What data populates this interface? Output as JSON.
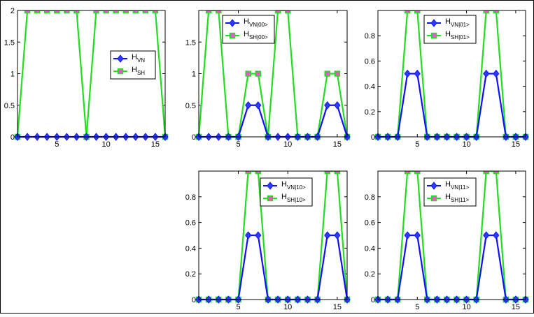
{
  "colors": {
    "vn": "#1010ff",
    "sh": "#22dd22",
    "sh_marker_fill": "#ee55cc",
    "vn_marker_fill": "#2b3cff"
  },
  "chart_data": [
    {
      "type": "line",
      "x": [
        1,
        2,
        3,
        4,
        5,
        6,
        7,
        8,
        9,
        10,
        11,
        12,
        13,
        14,
        15,
        16
      ],
      "xticks": [
        "5",
        "10",
        "15"
      ],
      "yticks": [
        "0",
        "0.5",
        "1",
        "1.5",
        "2"
      ],
      "ylim": [
        0,
        2
      ],
      "legend_placement": "center-right",
      "series": [
        {
          "name_main": "H",
          "name_sub": "VN",
          "values": [
            0,
            0,
            0,
            0,
            0,
            0,
            0,
            0,
            0,
            0,
            0,
            0,
            0,
            0,
            0,
            0
          ]
        },
        {
          "name_main": "H",
          "name_sub": "SH",
          "values": [
            0,
            2,
            2,
            2,
            2,
            2,
            2,
            0,
            2,
            2,
            2,
            2,
            2,
            2,
            2,
            0
          ]
        }
      ]
    },
    {
      "type": "line",
      "x": [
        1,
        2,
        3,
        4,
        5,
        6,
        7,
        8,
        9,
        10,
        11,
        12,
        13,
        14,
        15,
        16
      ],
      "xticks": [
        "5",
        "10",
        "15"
      ],
      "yticks": [
        "0",
        "0.5",
        "1",
        "1.5"
      ],
      "ylim": [
        0,
        2
      ],
      "legend_placement": "top-center",
      "series": [
        {
          "name_main": "H",
          "name_sub": "VN|00>",
          "values": [
            0,
            0,
            0,
            0,
            0,
            0.5,
            0.5,
            0,
            0,
            0,
            0,
            0,
            0,
            0.5,
            0.5,
            0
          ]
        },
        {
          "name_main": "H",
          "name_sub": "SH|00>",
          "values": [
            0,
            2,
            2,
            0,
            0,
            1,
            1,
            0,
            2,
            2,
            0,
            0,
            0,
            1,
            1,
            0
          ]
        }
      ]
    },
    {
      "type": "line",
      "x": [
        1,
        2,
        3,
        4,
        5,
        6,
        7,
        8,
        9,
        10,
        11,
        12,
        13,
        14,
        15,
        16
      ],
      "xticks": [
        "5",
        "10",
        "15"
      ],
      "yticks": [
        "0",
        "0.2",
        "0.4",
        "0.6",
        "0.8"
      ],
      "ylim": [
        0,
        1
      ],
      "legend_placement": "top-center",
      "series": [
        {
          "name_main": "H",
          "name_sub": "VN|01>",
          "values": [
            0,
            0,
            0,
            0.5,
            0.5,
            0,
            0,
            0,
            0,
            0,
            0,
            0.5,
            0.5,
            0,
            0,
            0
          ]
        },
        {
          "name_main": "H",
          "name_sub": "SH|01>",
          "values": [
            0,
            0,
            0,
            1,
            1,
            0,
            0,
            0,
            0,
            0,
            0,
            1,
            1,
            0,
            0,
            0
          ]
        }
      ]
    },
    {
      "type": "line",
      "x": [
        1,
        2,
        3,
        4,
        5,
        6,
        7,
        8,
        9,
        10,
        11,
        12,
        13,
        14,
        15,
        16
      ],
      "xticks": [
        "5",
        "10",
        "15"
      ],
      "yticks": [
        "0",
        "0.2",
        "0.4",
        "0.6",
        "0.8"
      ],
      "ylim": [
        0,
        1
      ],
      "legend_placement": "top-right",
      "series": [
        {
          "name_main": "H",
          "name_sub": "VN|10>",
          "values": [
            0,
            0,
            0,
            0,
            0,
            0.5,
            0.5,
            0,
            0,
            0,
            0,
            0,
            0,
            0.5,
            0.5,
            0
          ]
        },
        {
          "name_main": "H",
          "name_sub": "SH|10>",
          "values": [
            0,
            0,
            0,
            0,
            0,
            1,
            1,
            0,
            0,
            0,
            0,
            0,
            0,
            1,
            1,
            0
          ]
        }
      ]
    },
    {
      "type": "line",
      "x": [
        1,
        2,
        3,
        4,
        5,
        6,
        7,
        8,
        9,
        10,
        11,
        12,
        13,
        14,
        15,
        16
      ],
      "xticks": [
        "5",
        "10",
        "15"
      ],
      "yticks": [
        "0",
        "0.2",
        "0.4",
        "0.6",
        "0.8"
      ],
      "ylim": [
        0,
        1
      ],
      "legend_placement": "top-center",
      "series": [
        {
          "name_main": "H",
          "name_sub": "VN|11>",
          "values": [
            0,
            0,
            0,
            0.5,
            0.5,
            0,
            0,
            0,
            0,
            0,
            0,
            0.5,
            0.5,
            0,
            0,
            0
          ]
        },
        {
          "name_main": "H",
          "name_sub": "SH|11>",
          "values": [
            0,
            0,
            0,
            1,
            1,
            0,
            0,
            0,
            0,
            0,
            0,
            1,
            1,
            0,
            0,
            0
          ]
        }
      ]
    }
  ]
}
